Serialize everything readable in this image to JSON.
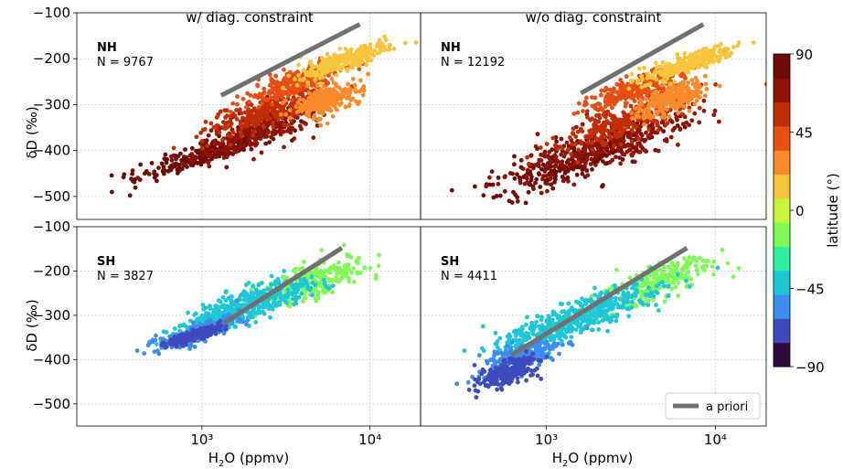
{
  "figure": {
    "column_titles": [
      "w/ diag. constraint",
      "w/o diag. constraint"
    ],
    "ylabel": "δD (‰)",
    "xlabel_base": "H",
    "xlabel_sub": "2",
    "xlabel_rest": "O (ppmv)"
  },
  "colorbar": {
    "label": "latitude (°)",
    "ticks": [
      "90",
      "45",
      "0",
      "−45",
      "−90"
    ],
    "tick_values": [
      90,
      45,
      0,
      -45,
      -90
    ],
    "range": [
      -90,
      90
    ],
    "colors": [
      "#2e0a3e",
      "#3f4bbc",
      "#3f8cf0",
      "#1fc6d6",
      "#2ff0a0",
      "#7ef956",
      "#c6f53a",
      "#f6c53c",
      "#fb8a2c",
      "#e94f12",
      "#c12e04",
      "#8f1303",
      "#6d0b07"
    ]
  },
  "legend": {
    "label": "a priori"
  },
  "chart_data": [
    {
      "type": "scatter",
      "panel": "top-left",
      "region": "NH",
      "n_label": "N = 9767",
      "title": "w/ diag. constraint",
      "xlabel": "",
      "ylabel": "δD (‰)",
      "xscale": "log",
      "xlim": [
        180,
        20000
      ],
      "ylim": [
        -550,
        -100
      ],
      "yticks": [
        "−100",
        "−200",
        "−300",
        "−400",
        "−500"
      ],
      "xticks": [],
      "series": [
        {
          "lat": 80,
          "cx": 1100,
          "cy": -405,
          "sx": 0.22,
          "sy": 18
        },
        {
          "lat": 70,
          "cx": 2200,
          "cy": -355,
          "sx": 0.18,
          "sy": 30
        },
        {
          "lat": 55,
          "cx": 2500,
          "cy": -315,
          "sx": 0.18,
          "sy": 22
        },
        {
          "lat": 40,
          "cx": 3500,
          "cy": -255,
          "sx": 0.14,
          "sy": 20
        },
        {
          "lat": 30,
          "cx": 5500,
          "cy": -290,
          "sx": 0.1,
          "sy": 22
        },
        {
          "lat": 20,
          "cx": 7000,
          "cy": -205,
          "sx": 0.13,
          "sy": 16
        }
      ],
      "apriori": {
        "x": [
          1300,
          8700
        ],
        "y": [
          -280,
          -125
        ]
      }
    },
    {
      "type": "scatter",
      "panel": "top-right",
      "region": "NH",
      "n_label": "N = 12192",
      "title": "w/o diag. constraint",
      "xlabel": "",
      "ylabel": "",
      "xscale": "log",
      "xlim": [
        180,
        20000
      ],
      "ylim": [
        -550,
        -100
      ],
      "yticks": [],
      "xticks": [],
      "series": [
        {
          "lat": 80,
          "cx": 1500,
          "cy": -420,
          "sx": 0.25,
          "sy": 35
        },
        {
          "lat": 70,
          "cx": 2200,
          "cy": -390,
          "sx": 0.25,
          "sy": 35
        },
        {
          "lat": 60,
          "cx": 2800,
          "cy": -340,
          "sx": 0.2,
          "sy": 28
        },
        {
          "lat": 40,
          "cx": 3500,
          "cy": -265,
          "sx": 0.14,
          "sy": 20
        },
        {
          "lat": 30,
          "cx": 5500,
          "cy": -290,
          "sx": 0.1,
          "sy": 20
        },
        {
          "lat": 20,
          "cx": 7000,
          "cy": -210,
          "sx": 0.14,
          "sy": 16
        }
      ],
      "apriori": {
        "x": [
          1600,
          8500
        ],
        "y": [
          -275,
          -125
        ]
      }
    },
    {
      "type": "scatter",
      "panel": "bottom-left",
      "region": "SH",
      "n_label": "N = 3827",
      "title": "",
      "xlabel": "H2O (ppmv)",
      "ylabel": "δD (‰)",
      "xscale": "log",
      "xlim": [
        180,
        20000
      ],
      "ylim": [
        -550,
        -100
      ],
      "yticks": [
        "−100",
        "−200",
        "−300",
        "−400",
        "−500"
      ],
      "xticks": [
        "10³",
        "10⁴"
      ],
      "series": [
        {
          "lat": -20,
          "cx": 4500,
          "cy": -225,
          "sx": 0.16,
          "sy": 26
        },
        {
          "lat": -35,
          "cx": 2200,
          "cy": -265,
          "sx": 0.18,
          "sy": 25
        },
        {
          "lat": -45,
          "cx": 1300,
          "cy": -305,
          "sx": 0.14,
          "sy": 18
        },
        {
          "lat": -60,
          "cx": 950,
          "cy": -340,
          "sx": 0.12,
          "sy": 15
        },
        {
          "lat": -75,
          "cx": 900,
          "cy": -345,
          "sx": 0.08,
          "sy": 8
        }
      ],
      "apriori": {
        "x": [
          1350,
          6800
        ],
        "y": [
          -318,
          -148
        ]
      }
    },
    {
      "type": "scatter",
      "panel": "bottom-right",
      "region": "SH",
      "n_label": "N = 4411",
      "title": "",
      "xlabel": "H2O (ppmv)",
      "ylabel": "",
      "xscale": "log",
      "xlim": [
        180,
        20000
      ],
      "ylim": [
        -550,
        -100
      ],
      "yticks": [],
      "xticks": [
        "10³",
        "10⁴"
      ],
      "series": [
        {
          "lat": -20,
          "cx": 4500,
          "cy": -225,
          "sx": 0.16,
          "sy": 28
        },
        {
          "lat": -35,
          "cx": 2000,
          "cy": -285,
          "sx": 0.2,
          "sy": 28
        },
        {
          "lat": -45,
          "cx": 1000,
          "cy": -340,
          "sx": 0.16,
          "sy": 22
        },
        {
          "lat": -60,
          "cx": 700,
          "cy": -395,
          "sx": 0.12,
          "sy": 22
        },
        {
          "lat": -75,
          "cx": 580,
          "cy": -430,
          "sx": 0.08,
          "sy": 18
        }
      ],
      "apriori": {
        "x": [
          620,
          6800
        ],
        "y": [
          -390,
          -148
        ]
      }
    }
  ]
}
